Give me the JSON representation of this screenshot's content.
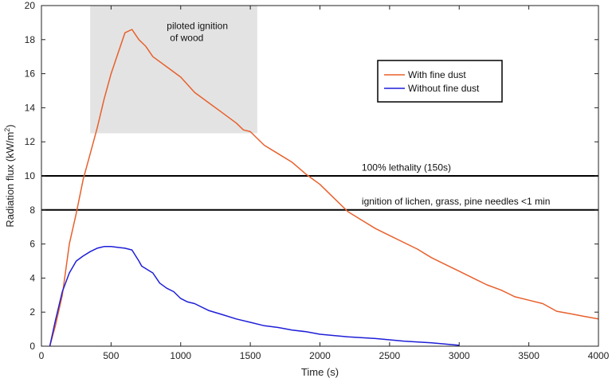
{
  "chart_data": {
    "type": "line",
    "xlabel": "Time (s)",
    "ylabel": "Radiation flux (kW/m",
    "ylabel_superscript": "2",
    "ylabel_close": ")",
    "xlim": [
      0,
      4000
    ],
    "ylim": [
      0,
      20
    ],
    "x_ticks": [
      "0",
      "500",
      "1000",
      "1500",
      "2000",
      "2500",
      "3000",
      "3500",
      "4000"
    ],
    "y_ticks": [
      "0",
      "2",
      "4",
      "6",
      "8",
      "10",
      "12",
      "14",
      "16",
      "18",
      "20"
    ],
    "grid": false,
    "legend_position": "top-right",
    "series": [
      {
        "name": "With fine dust",
        "color": "#e8602c",
        "points": [
          [
            60,
            0
          ],
          [
            100,
            1.2
          ],
          [
            150,
            3
          ],
          [
            180,
            4.8
          ],
          [
            200,
            6
          ],
          [
            250,
            7.8
          ],
          [
            300,
            9.8
          ],
          [
            350,
            11.3
          ],
          [
            400,
            12.8
          ],
          [
            450,
            14.5
          ],
          [
            500,
            16
          ],
          [
            550,
            17.2
          ],
          [
            600,
            18.4
          ],
          [
            650,
            18.6
          ],
          [
            700,
            18
          ],
          [
            750,
            17.6
          ],
          [
            800,
            17
          ],
          [
            900,
            16.4
          ],
          [
            1000,
            15.8
          ],
          [
            1100,
            14.9
          ],
          [
            1200,
            14.3
          ],
          [
            1300,
            13.7
          ],
          [
            1400,
            13.1
          ],
          [
            1450,
            12.7
          ],
          [
            1500,
            12.6
          ],
          [
            1600,
            11.8
          ],
          [
            1700,
            11.3
          ],
          [
            1800,
            10.8
          ],
          [
            1900,
            10.1
          ],
          [
            2000,
            9.5
          ],
          [
            2100,
            8.7
          ],
          [
            2200,
            7.9
          ],
          [
            2300,
            7.4
          ],
          [
            2400,
            6.9
          ],
          [
            2500,
            6.5
          ],
          [
            2600,
            6.1
          ],
          [
            2700,
            5.7
          ],
          [
            2800,
            5.2
          ],
          [
            2900,
            4.8
          ],
          [
            3000,
            4.4
          ],
          [
            3100,
            4
          ],
          [
            3200,
            3.6
          ],
          [
            3300,
            3.3
          ],
          [
            3400,
            2.9
          ],
          [
            3500,
            2.7
          ],
          [
            3600,
            2.5
          ],
          [
            3700,
            2.05
          ],
          [
            3800,
            1.9
          ],
          [
            3900,
            1.75
          ],
          [
            4000,
            1.6
          ]
        ]
      },
      {
        "name": "Without fine dust",
        "color": "#1e1ed8",
        "points": [
          [
            60,
            0
          ],
          [
            100,
            1.5
          ],
          [
            150,
            3.2
          ],
          [
            200,
            4.3
          ],
          [
            250,
            5
          ],
          [
            300,
            5.3
          ],
          [
            350,
            5.55
          ],
          [
            400,
            5.75
          ],
          [
            450,
            5.85
          ],
          [
            500,
            5.85
          ],
          [
            550,
            5.8
          ],
          [
            600,
            5.75
          ],
          [
            650,
            5.65
          ],
          [
            700,
            5
          ],
          [
            720,
            4.7
          ],
          [
            800,
            4.3
          ],
          [
            850,
            3.7
          ],
          [
            900,
            3.4
          ],
          [
            950,
            3.2
          ],
          [
            1000,
            2.8
          ],
          [
            1050,
            2.6
          ],
          [
            1100,
            2.5
          ],
          [
            1200,
            2.1
          ],
          [
            1300,
            1.85
          ],
          [
            1400,
            1.6
          ],
          [
            1500,
            1.4
          ],
          [
            1600,
            1.2
          ],
          [
            1700,
            1.1
          ],
          [
            1800,
            0.95
          ],
          [
            1900,
            0.85
          ],
          [
            2000,
            0.7
          ],
          [
            2200,
            0.55
          ],
          [
            2400,
            0.45
          ],
          [
            2600,
            0.3
          ],
          [
            2800,
            0.2
          ],
          [
            3000,
            0.05
          ]
        ]
      }
    ],
    "thresholds": [
      {
        "y": 10,
        "label": "100% lethality (150s)",
        "label_x": 2300,
        "label_y": 10.5
      },
      {
        "y": 8,
        "label": "ignition of lichen, grass, pine needles <1 min",
        "label_x": 2300,
        "label_y": 8.5
      }
    ],
    "shaded_region": {
      "x": [
        350,
        1550
      ],
      "y": [
        12.5,
        20
      ],
      "color": "#e3e3e3",
      "label_lines": [
        "piloted ignition",
        "of wood"
      ],
      "label_x": 900,
      "label_y": 18.8
    }
  }
}
